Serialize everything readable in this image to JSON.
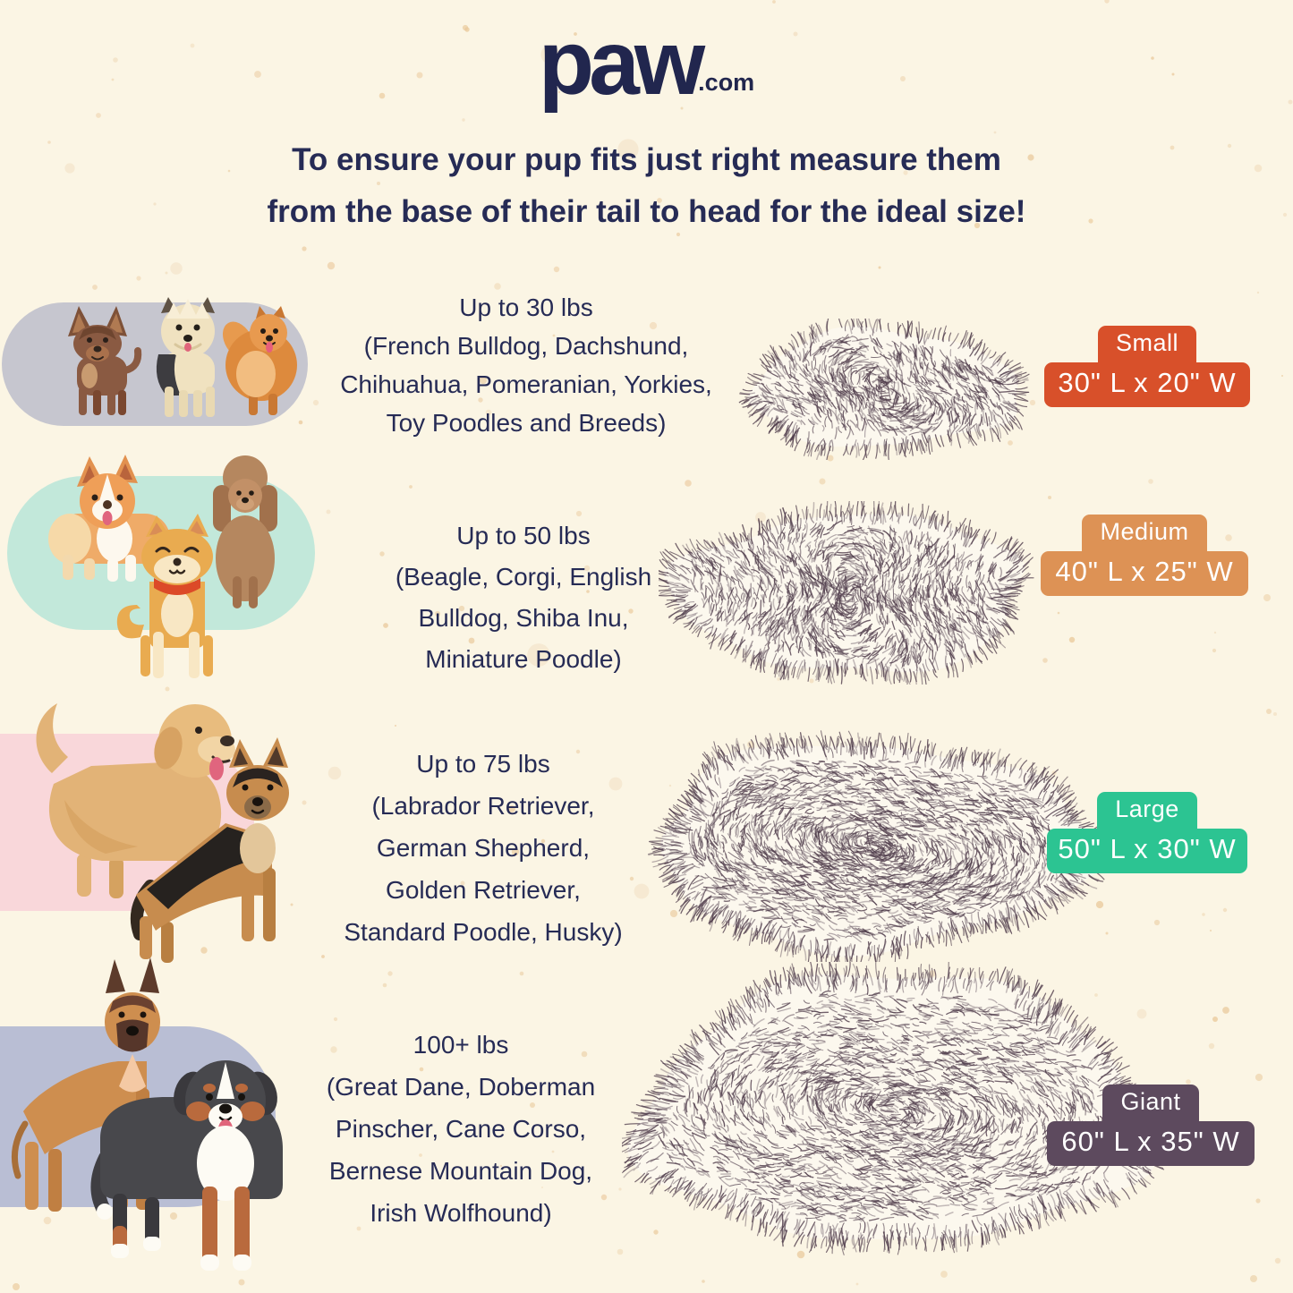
{
  "background": {
    "page_color": "#fbf5e4",
    "speckle_color": "#e9c89a",
    "bed_fur_color": "#4d3a49",
    "bed_base_color": "#fcf8ee",
    "ink_color": "#262b55"
  },
  "logo": {
    "brand": "paw",
    "tld": ".com"
  },
  "headline": {
    "line1": "To ensure your pup fits just right measure them",
    "line2": "from the base of their tail to head for the ideal size!"
  },
  "sizes": [
    {
      "label": "Small",
      "dimensions": "30\" L x 20\" W",
      "weight": "Up to 30 lbs",
      "breeds": [
        "(French Bulldog, Dachshund,",
        "Chihuahua, Pomeranian, Yorkies,",
        "Toy Poodles and Breeds)"
      ],
      "badge_color": "#d8502a",
      "pill_color": "#c6c6cf",
      "dogs": [
        "Chihuahua",
        "Yorkshire Terrier",
        "Pomeranian"
      ]
    },
    {
      "label": "Medium",
      "dimensions": "40\" L x 25\" W",
      "weight": "Up to 50 lbs",
      "breeds": [
        "(Beagle, Corgi, English",
        "Bulldog, Shiba Inu,",
        "Miniature Poodle)"
      ],
      "badge_color": "#dd9255",
      "pill_color": "#c2e8da",
      "dogs": [
        "Corgi",
        "Miniature Poodle",
        "Shiba Inu"
      ]
    },
    {
      "label": "Large",
      "dimensions": "50\" L x 30\" W",
      "weight": "Up to 75 lbs",
      "breeds": [
        "(Labrador Retriever,",
        "German Shepherd,",
        "Golden Retriever,",
        "Standard Poodle, Husky)"
      ],
      "badge_color": "#2cc492",
      "pill_color": "#f9d7da",
      "dogs": [
        "Golden Retriever",
        "German Shepherd"
      ]
    },
    {
      "label": "Giant",
      "dimensions": "60\" L x 35\" W",
      "weight": "100+ lbs",
      "breeds": [
        "(Great Dane, Doberman",
        "Pinscher, Cane Corso,",
        "Bernese Mountain Dog,",
        "Irish Wolfhound)"
      ],
      "badge_color": "#5d4a5e",
      "pill_color": "#b9bed4",
      "dogs": [
        "Great Dane",
        "Bernese Mountain Dog"
      ]
    }
  ]
}
